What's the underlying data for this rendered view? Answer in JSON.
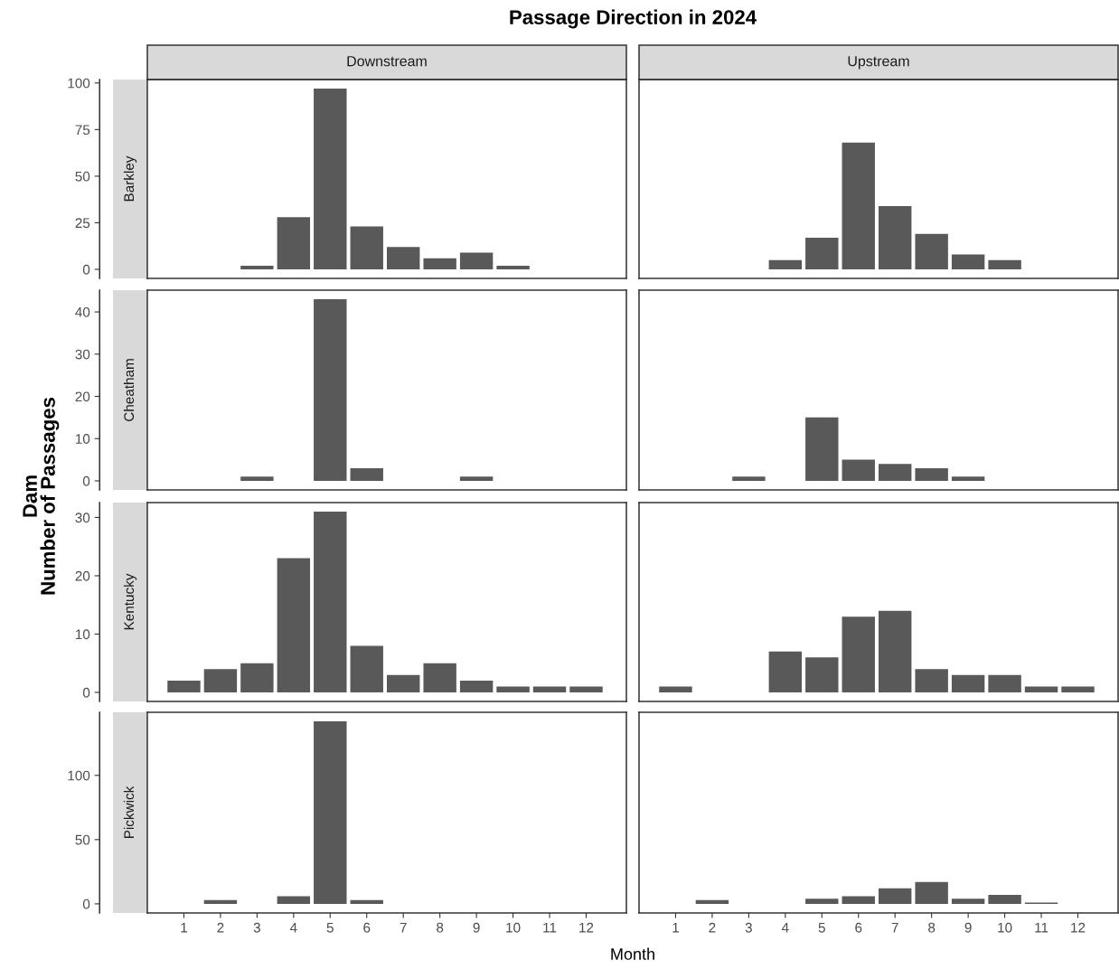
{
  "chart_data": [
    {
      "type": "bar",
      "title": "Passage Direction in 2024",
      "subtitle": "Downstream",
      "ylabel": "Dam\nNumber of Passages",
      "annotations": [
        "Barkley"
      ],
      "color": "#595959",
      "x": [
        3,
        4,
        5,
        6,
        7,
        8,
        9,
        10
      ],
      "values": [
        2,
        28,
        97,
        23,
        12,
        6,
        9,
        2
      ],
      "xlim": [
        0,
        13.1
      ],
      "ylim": [
        -4.85,
        101.85
      ],
      "yticks": [
        0,
        25,
        50,
        75,
        100
      ],
      "tick_labels": "y",
      "grid": false,
      "legend": false
    },
    {
      "type": "bar",
      "subtitle": "Upstream",
      "color": "#595959",
      "x": [
        4,
        5,
        6,
        7,
        8,
        9,
        10
      ],
      "values": [
        5,
        17,
        68,
        34,
        19,
        8,
        5
      ],
      "xlim": [
        0,
        13.1
      ],
      "ylim": [
        -4.85,
        101.85
      ],
      "tick_labels": false,
      "grid": false,
      "legend": false
    },
    {
      "type": "bar",
      "annotations": [
        "Cheatham"
      ],
      "color": "#595959",
      "x": [
        3,
        5,
        6,
        9
      ],
      "values": [
        1,
        43,
        3,
        1
      ],
      "xlim": [
        0,
        13.1
      ],
      "ylim": [
        -2.15,
        45.15
      ],
      "yticks": [
        0,
        10,
        20,
        30,
        40
      ],
      "tick_labels": "y",
      "grid": false,
      "legend": false
    },
    {
      "type": "bar",
      "color": "#595959",
      "x": [
        3,
        5,
        6,
        7,
        8,
        9
      ],
      "values": [
        1,
        15,
        5,
        4,
        3,
        1
      ],
      "xlim": [
        0,
        13.1
      ],
      "ylim": [
        -2.15,
        45.15
      ],
      "tick_labels": false,
      "grid": false,
      "legend": false
    },
    {
      "type": "bar",
      "annotations": [
        "Kentucky"
      ],
      "color": "#595959",
      "x": [
        1,
        2,
        3,
        4,
        5,
        6,
        7,
        8,
        9,
        10,
        11,
        12
      ],
      "values": [
        2,
        4,
        5,
        23,
        31,
        8,
        3,
        5,
        2,
        1,
        1,
        1
      ],
      "xlim": [
        0,
        13.1
      ],
      "ylim": [
        -1.55,
        32.55
      ],
      "yticks": [
        0,
        10,
        20,
        30
      ],
      "tick_labels": "y",
      "grid": false,
      "legend": false
    },
    {
      "type": "bar",
      "color": "#595959",
      "x": [
        1,
        4,
        5,
        6,
        7,
        8,
        9,
        10,
        11,
        12
      ],
      "values": [
        1,
        7,
        6,
        13,
        14,
        4,
        3,
        3,
        1,
        1
      ],
      "xlim": [
        0,
        13.1
      ],
      "ylim": [
        -1.55,
        32.55
      ],
      "tick_labels": false,
      "grid": false,
      "legend": false
    },
    {
      "type": "bar",
      "xlabel": "Month",
      "annotations": [
        "Pickwick"
      ],
      "color": "#595959",
      "x": [
        2,
        4,
        5,
        6
      ],
      "values": [
        3,
        6,
        142,
        3
      ],
      "xlim": [
        0,
        13.1
      ],
      "ylim": [
        -7.1,
        149.1
      ],
      "xticks": [
        1,
        2,
        3,
        4,
        5,
        6,
        7,
        8,
        9,
        10,
        11,
        12
      ],
      "yticks": [
        0,
        50,
        100
      ],
      "grid": false,
      "legend": false
    },
    {
      "type": "bar",
      "color": "#595959",
      "x": [
        2,
        5,
        6,
        7,
        8,
        9,
        10,
        11
      ],
      "values": [
        3,
        4,
        6,
        12,
        17,
        4,
        7,
        1
      ],
      "xlim": [
        0,
        13.1
      ],
      "ylim": [
        -7.1,
        149.1
      ],
      "xticks": [
        1,
        2,
        3,
        4,
        5,
        6,
        7,
        8,
        9,
        10,
        11,
        12
      ],
      "tick_labels": "x",
      "grid": false,
      "legend": false
    }
  ]
}
